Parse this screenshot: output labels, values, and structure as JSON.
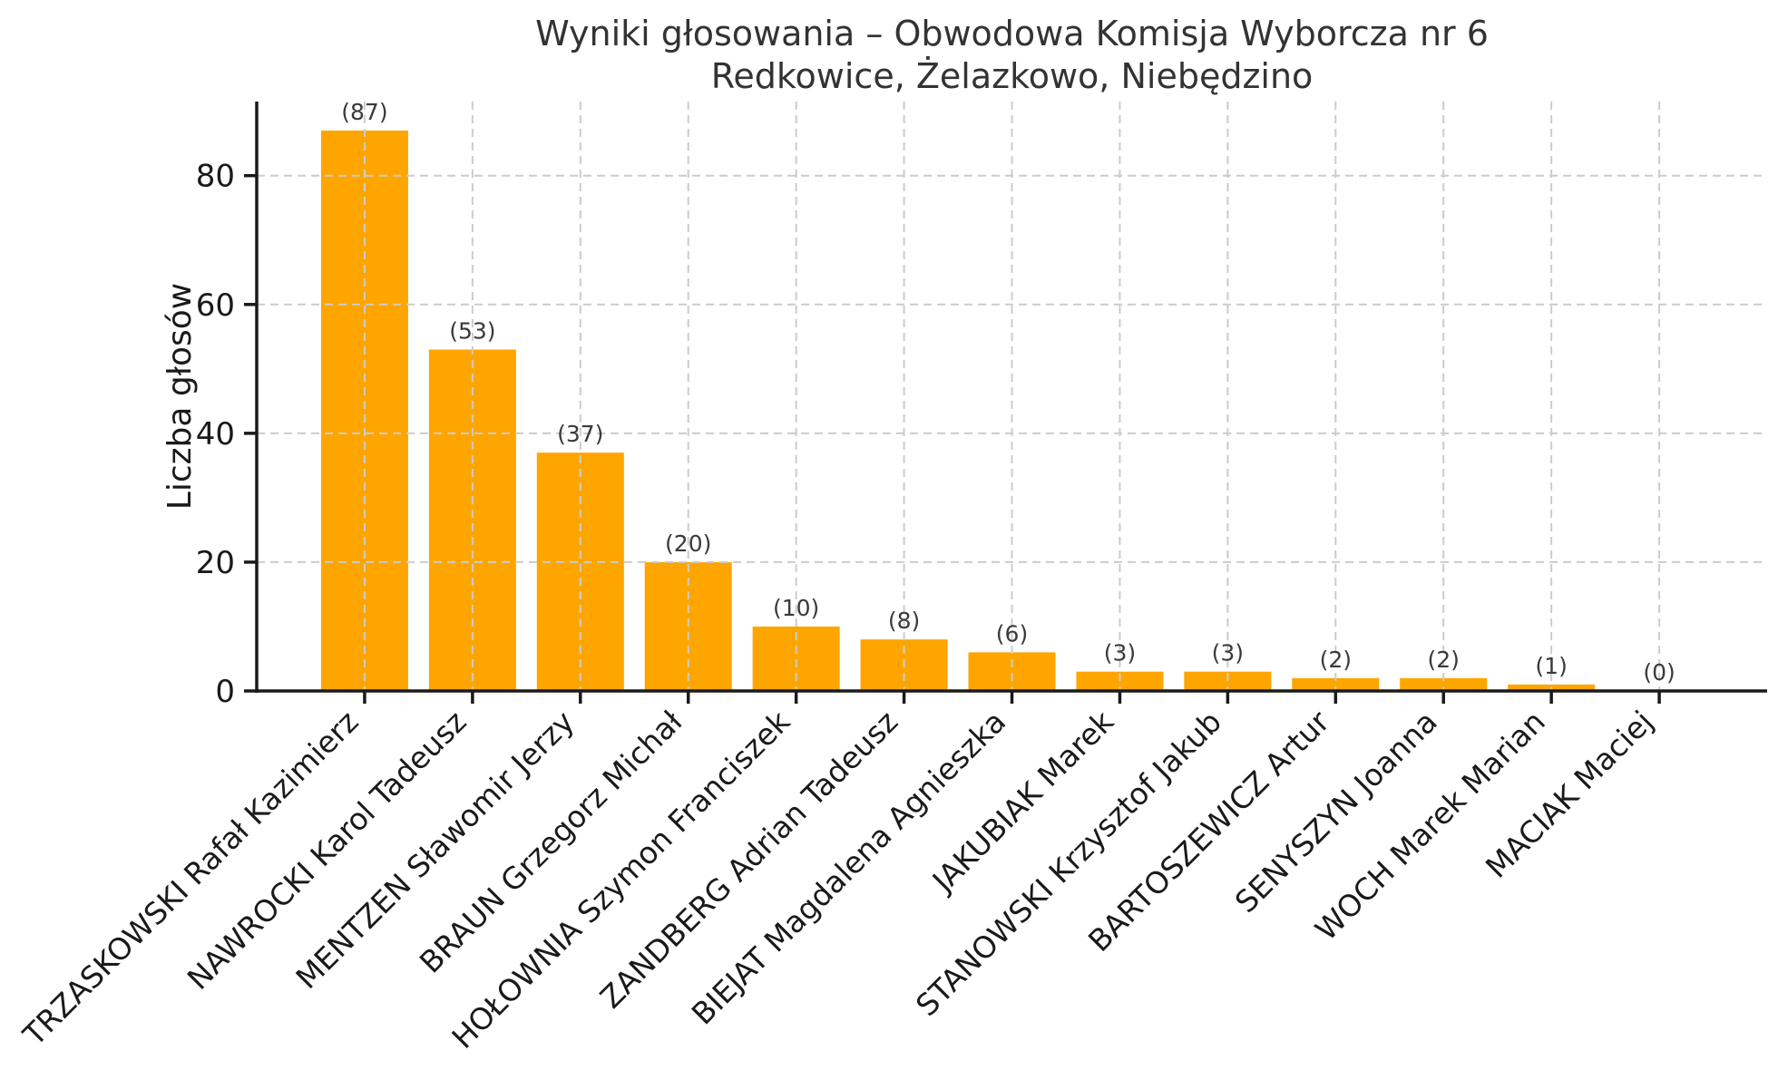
{
  "chart_data": {
    "type": "bar",
    "title": [
      "Wyniki głosowania – Obwodowa Komisja Wyborcza nr 6",
      "Redkowice, Żelazkowo, Niebędzino"
    ],
    "ylabel": "Liczba głosów",
    "xlabel": "",
    "categories": [
      "TRZASKOWSKI Rafał Kazimierz",
      "NAWROCKI Karol Tadeusz",
      "MENTZEN Sławomir Jerzy",
      "BRAUN Grzegorz Michał",
      "HOŁOWNIA Szymon Franciszek",
      "ZANDBERG Adrian Tadeusz",
      "BIEJAT Magdalena Agnieszka",
      "JAKUBIAK Marek",
      "STANOWSKI Krzysztof Jakub",
      "BARTOSZEWICZ Artur",
      "SENYSZYN Joanna",
      "WOCH Marek Marian",
      "MACIAK Maciej"
    ],
    "values": [
      87,
      53,
      37,
      20,
      10,
      8,
      6,
      3,
      3,
      2,
      2,
      1,
      0
    ],
    "annotations": [
      "(87)",
      "(53)",
      "(37)",
      "(20)",
      "(10)",
      "(8)",
      "(6)",
      "(3)",
      "(3)",
      "(2)",
      "(2)",
      "(1)",
      "(0)"
    ],
    "yticks": [
      0,
      20,
      40,
      60,
      80
    ],
    "ylim": [
      0,
      91.5
    ],
    "grid": "both-dashed",
    "legend": "none",
    "bar_color": "#FFA500",
    "grid_color": "#cccccc",
    "axis_color": "#1a1a1a",
    "tick_label_color": "#1a1a1a",
    "title_color": "#333333",
    "annotation_color": "#3a3a3a",
    "background_color": "#ffffff"
  }
}
